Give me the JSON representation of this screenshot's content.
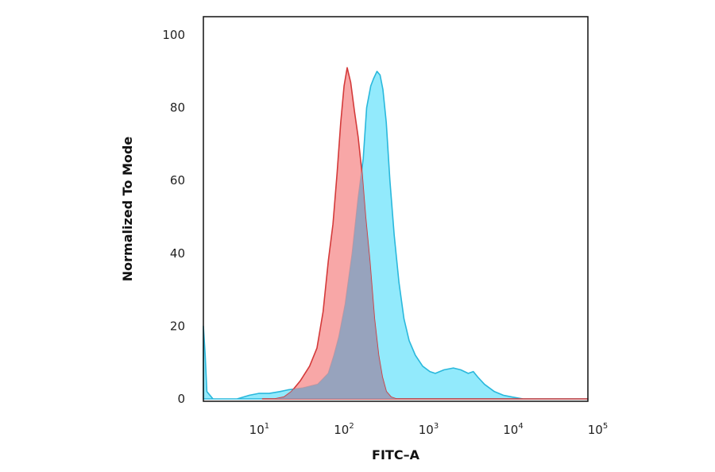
{
  "chart_data": {
    "type": "area",
    "title": "",
    "xlabel": "FITC–A",
    "ylabel": "Normalized To Mode",
    "x_scale": "log",
    "xlim": [
      2,
      70000
    ],
    "ylim": [
      0,
      100
    ],
    "y_ticks": [
      0,
      20,
      40,
      60,
      80,
      100
    ],
    "x_ticks": [
      {
        "value": 10,
        "base": "10",
        "exp": "1"
      },
      {
        "value": 100,
        "base": "10",
        "exp": "2"
      },
      {
        "value": 1000,
        "base": "10",
        "exp": "3"
      },
      {
        "value": 10000,
        "base": "10",
        "exp": "4"
      },
      {
        "value": 100000,
        "base": "10",
        "exp": "5"
      }
    ],
    "grid": false,
    "legend": "none",
    "series": [
      {
        "color": "#00d4f5",
        "fill": "#7fe6fb",
        "stroke": "#2ab8dc",
        "points": [
          [
            2,
            20
          ],
          [
            2.1,
            12
          ],
          [
            2.2,
            2
          ],
          [
            2.6,
            0
          ],
          [
            5,
            0
          ],
          [
            7,
            1
          ],
          [
            9,
            1.5
          ],
          [
            12,
            1.5
          ],
          [
            16,
            2
          ],
          [
            20,
            2.5
          ],
          [
            30,
            3
          ],
          [
            45,
            4
          ],
          [
            60,
            7
          ],
          [
            70,
            12
          ],
          [
            80,
            17
          ],
          [
            95,
            26
          ],
          [
            115,
            40
          ],
          [
            135,
            55
          ],
          [
            155,
            66
          ],
          [
            170,
            80
          ],
          [
            190,
            86
          ],
          [
            205,
            88
          ],
          [
            225,
            90
          ],
          [
            245,
            89
          ],
          [
            265,
            85
          ],
          [
            290,
            76
          ],
          [
            320,
            60
          ],
          [
            360,
            45
          ],
          [
            410,
            32
          ],
          [
            470,
            22
          ],
          [
            540,
            16
          ],
          [
            640,
            12
          ],
          [
            780,
            9
          ],
          [
            950,
            7.5
          ],
          [
            1100,
            7
          ],
          [
            1400,
            8
          ],
          [
            1800,
            8.5
          ],
          [
            2200,
            8
          ],
          [
            2700,
            7
          ],
          [
            3100,
            7.5
          ],
          [
            3500,
            6
          ],
          [
            4200,
            4
          ],
          [
            5500,
            2
          ],
          [
            7000,
            1
          ],
          [
            9000,
            0.5
          ],
          [
            12000,
            0
          ],
          [
            70000,
            0
          ]
        ]
      },
      {
        "color": "#e84a4a",
        "fill": "#f58a8a",
        "stroke": "#d43a3a",
        "points": [
          [
            10,
            0
          ],
          [
            14,
            0
          ],
          [
            18,
            0.5
          ],
          [
            22,
            2
          ],
          [
            28,
            5
          ],
          [
            36,
            9
          ],
          [
            44,
            14
          ],
          [
            52,
            24
          ],
          [
            60,
            38
          ],
          [
            68,
            48
          ],
          [
            76,
            62
          ],
          [
            84,
            76
          ],
          [
            92,
            86
          ],
          [
            100,
            91
          ],
          [
            110,
            87
          ],
          [
            122,
            79
          ],
          [
            135,
            72
          ],
          [
            150,
            62
          ],
          [
            165,
            50
          ],
          [
            185,
            38
          ],
          [
            210,
            22
          ],
          [
            235,
            12
          ],
          [
            260,
            6
          ],
          [
            290,
            2
          ],
          [
            330,
            0.5
          ],
          [
            380,
            0
          ],
          [
            70000,
            0
          ]
        ]
      }
    ]
  }
}
